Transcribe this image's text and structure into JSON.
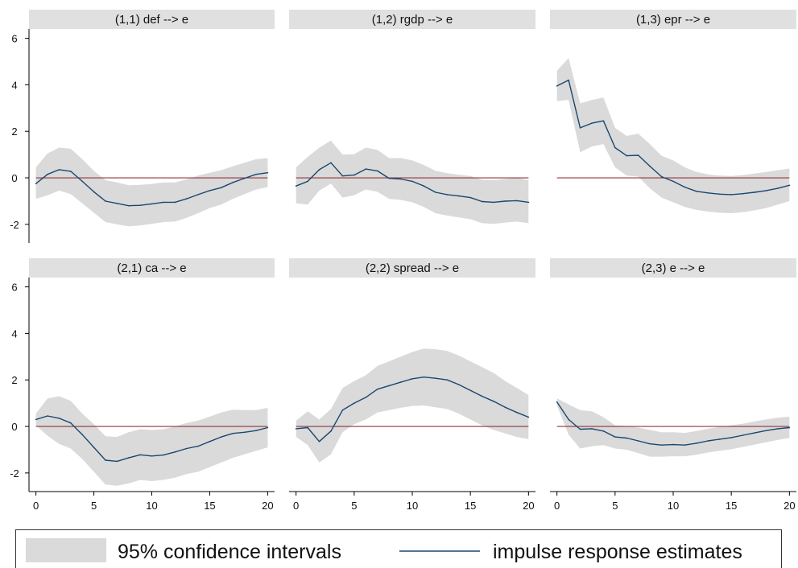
{
  "chart_data": {
    "type": "line",
    "layout": "2x3 facet grid",
    "x": [
      0,
      1,
      2,
      3,
      4,
      5,
      6,
      7,
      8,
      9,
      10,
      11,
      12,
      13,
      14,
      15,
      16,
      17,
      18,
      19,
      20
    ],
    "xticks": [
      0,
      5,
      10,
      15,
      20
    ],
    "yticks": [
      -2,
      0,
      2,
      4,
      6
    ],
    "ylim": [
      -2.8,
      6.4
    ],
    "xlim": [
      -0.6,
      20.6
    ],
    "reference_line": 0,
    "legend": {
      "position": "bottom",
      "ci_label": "95% confidence intervals",
      "line_label": "impulse response estimates"
    },
    "colors": {
      "band": "#dadada",
      "line": "#1a476f",
      "zero_line": "#90353b",
      "strip": "#e0e0e0"
    },
    "panels": [
      {
        "title": "(1,1) def --> e",
        "irf": [
          -0.25,
          0.15,
          0.35,
          0.28,
          -0.15,
          -0.6,
          -1.0,
          -1.1,
          -1.2,
          -1.18,
          -1.12,
          -1.05,
          -1.05,
          -0.9,
          -0.72,
          -0.55,
          -0.42,
          -0.2,
          -0.02,
          0.15,
          0.22
        ],
        "lower": [
          -0.9,
          -0.75,
          -0.55,
          -0.7,
          -1.1,
          -1.5,
          -1.9,
          -2.0,
          -2.08,
          -2.05,
          -1.98,
          -1.9,
          -1.88,
          -1.72,
          -1.52,
          -1.3,
          -1.15,
          -0.9,
          -0.7,
          -0.5,
          -0.4
        ],
        "upper": [
          0.45,
          1.05,
          1.3,
          1.25,
          0.8,
          0.3,
          -0.1,
          -0.2,
          -0.32,
          -0.3,
          -0.26,
          -0.2,
          -0.2,
          -0.07,
          0.1,
          0.22,
          0.33,
          0.5,
          0.65,
          0.8,
          0.85
        ]
      },
      {
        "title": "(1,2) rgdp --> e",
        "irf": [
          -0.35,
          -0.15,
          0.35,
          0.65,
          0.08,
          0.12,
          0.38,
          0.3,
          -0.02,
          -0.05,
          -0.15,
          -0.35,
          -0.62,
          -0.72,
          -0.78,
          -0.85,
          -1.02,
          -1.05,
          -1.0,
          -0.98,
          -1.05
        ],
        "lower": [
          -1.1,
          -1.15,
          -0.55,
          -0.25,
          -0.85,
          -0.75,
          -0.5,
          -0.6,
          -0.9,
          -0.95,
          -1.05,
          -1.25,
          -1.52,
          -1.62,
          -1.7,
          -1.78,
          -1.95,
          -1.98,
          -1.92,
          -1.88,
          -1.95
        ],
        "upper": [
          0.45,
          0.9,
          1.3,
          1.6,
          1.0,
          1.02,
          1.3,
          1.2,
          0.85,
          0.85,
          0.75,
          0.55,
          0.3,
          0.2,
          0.13,
          0.08,
          -0.08,
          -0.1,
          -0.05,
          0.0,
          -0.1
        ]
      },
      {
        "title": "(1,3) epr --> e",
        "irf": [
          3.95,
          4.2,
          2.15,
          2.35,
          2.45,
          1.3,
          0.95,
          0.97,
          0.5,
          0.05,
          -0.15,
          -0.4,
          -0.58,
          -0.65,
          -0.7,
          -0.72,
          -0.68,
          -0.62,
          -0.55,
          -0.45,
          -0.32
        ],
        "lower": [
          3.3,
          3.35,
          1.1,
          1.35,
          1.45,
          0.45,
          0.1,
          0.05,
          -0.45,
          -0.85,
          -1.05,
          -1.25,
          -1.38,
          -1.45,
          -1.5,
          -1.52,
          -1.48,
          -1.4,
          -1.3,
          -1.15,
          -1.0
        ],
        "upper": [
          4.6,
          5.15,
          3.2,
          3.35,
          3.45,
          2.15,
          1.8,
          1.9,
          1.45,
          0.95,
          0.75,
          0.45,
          0.25,
          0.15,
          0.1,
          0.08,
          0.12,
          0.18,
          0.25,
          0.33,
          0.4
        ]
      },
      {
        "title": "(2,1) ca --> e",
        "irf": [
          0.3,
          0.45,
          0.35,
          0.15,
          -0.35,
          -0.9,
          -1.45,
          -1.5,
          -1.35,
          -1.22,
          -1.27,
          -1.23,
          -1.1,
          -0.95,
          -0.85,
          -0.65,
          -0.45,
          -0.3,
          -0.25,
          -0.18,
          -0.05
        ],
        "lower": [
          0.05,
          -0.4,
          -0.75,
          -0.95,
          -1.4,
          -1.95,
          -2.5,
          -2.55,
          -2.45,
          -2.3,
          -2.35,
          -2.3,
          -2.2,
          -2.05,
          -1.95,
          -1.75,
          -1.55,
          -1.35,
          -1.2,
          -1.05,
          -0.9
        ],
        "upper": [
          0.55,
          1.2,
          1.3,
          1.1,
          0.55,
          0.1,
          -0.42,
          -0.45,
          -0.25,
          -0.12,
          -0.15,
          -0.12,
          0.0,
          0.15,
          0.25,
          0.42,
          0.6,
          0.72,
          0.7,
          0.7,
          0.8
        ]
      },
      {
        "title": "(2,2) spread --> e",
        "irf": [
          -0.1,
          -0.05,
          -0.65,
          -0.2,
          0.7,
          1.0,
          1.25,
          1.6,
          1.75,
          1.9,
          2.05,
          2.12,
          2.07,
          2.0,
          1.8,
          1.55,
          1.3,
          1.08,
          0.82,
          0.6,
          0.4
        ],
        "lower": [
          -0.45,
          -0.8,
          -1.55,
          -1.2,
          -0.25,
          0.1,
          0.3,
          0.6,
          0.7,
          0.8,
          0.88,
          0.9,
          0.82,
          0.75,
          0.55,
          0.3,
          0.05,
          -0.15,
          -0.3,
          -0.45,
          -0.55
        ],
        "upper": [
          0.25,
          0.65,
          0.3,
          0.75,
          1.65,
          1.95,
          2.2,
          2.6,
          2.8,
          3.0,
          3.2,
          3.35,
          3.32,
          3.25,
          3.05,
          2.8,
          2.55,
          2.3,
          1.95,
          1.65,
          1.35
        ]
      },
      {
        "title": "(2,3) e --> e",
        "irf": [
          1.05,
          0.3,
          -0.12,
          -0.1,
          -0.2,
          -0.45,
          -0.5,
          -0.62,
          -0.75,
          -0.8,
          -0.78,
          -0.8,
          -0.72,
          -0.62,
          -0.55,
          -0.48,
          -0.38,
          -0.28,
          -0.18,
          -0.1,
          -0.05
        ],
        "lower": [
          0.9,
          -0.35,
          -0.95,
          -0.85,
          -0.8,
          -0.95,
          -1.0,
          -1.15,
          -1.3,
          -1.3,
          -1.28,
          -1.28,
          -1.22,
          -1.12,
          -1.05,
          -0.98,
          -0.88,
          -0.78,
          -0.68,
          -0.58,
          -0.5
        ],
        "upper": [
          1.2,
          0.95,
          0.7,
          0.65,
          0.4,
          0.05,
          0.02,
          -0.05,
          -0.15,
          -0.25,
          -0.25,
          -0.28,
          -0.2,
          -0.1,
          -0.02,
          0.05,
          0.12,
          0.22,
          0.3,
          0.38,
          0.42
        ]
      }
    ]
  }
}
